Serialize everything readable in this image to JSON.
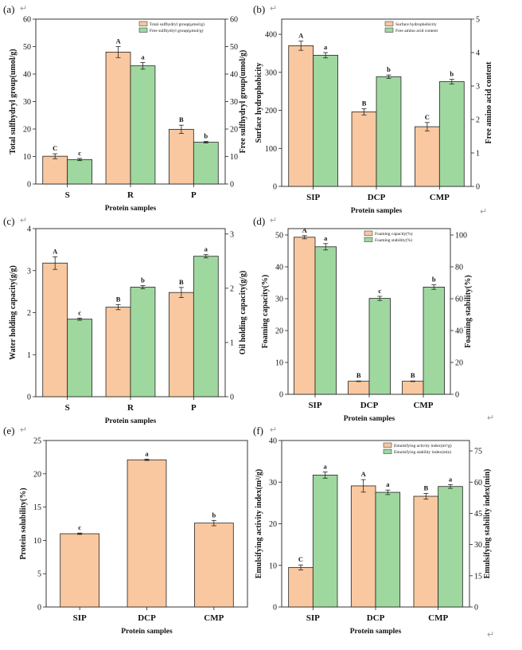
{
  "colors": {
    "primary": "#f9c8a0",
    "secondary": "#9fd89f",
    "edge": "#222222",
    "mark": "#9a9a9a"
  },
  "trailing_mark": "↵",
  "chart_data": [
    {
      "type": "bar",
      "panel": "(a)",
      "categories": [
        "S",
        "R",
        "P"
      ],
      "xlabel": "Protein samples",
      "ylabel": "Total sulfhydryl group(umol/g)",
      "ylabel2": "Free sulfhydryl group(umol/g)",
      "ylim": [
        0,
        60
      ],
      "yticks": [
        0,
        10,
        20,
        30,
        40,
        50,
        60
      ],
      "ylim2": [
        0,
        60
      ],
      "yticks2": [
        0,
        10,
        20,
        30,
        40,
        50,
        60
      ],
      "legend": "top-right",
      "series": [
        {
          "name": "Total sulfhydryl group(μmol/g)",
          "axis": "left",
          "values": [
            10.1,
            48.0,
            19.9
          ],
          "errors": [
            0.9,
            2.0,
            1.5
          ],
          "letters": [
            "C",
            "A",
            "B"
          ]
        },
        {
          "name": "Free sulfhydryl group(μmol/g)",
          "axis": "right",
          "values": [
            8.9,
            43.0,
            15.2
          ],
          "errors": [
            0.4,
            1.2,
            0.3
          ],
          "letters": [
            "c",
            "a",
            "b"
          ]
        }
      ]
    },
    {
      "type": "bar",
      "panel": "(b)",
      "categories": [
        "SIP",
        "DCP",
        "CMP"
      ],
      "xlabel": "Protein samples",
      "ylabel": "Surface hydrophobicity",
      "ylabel2": "Free amino acid content",
      "ylim": [
        0,
        440
      ],
      "yticks": [
        0,
        100,
        200,
        300,
        400
      ],
      "ylim2": [
        0,
        5
      ],
      "yticks2": [
        0,
        1,
        2,
        3,
        4,
        5
      ],
      "legend": "top-right",
      "series": [
        {
          "name": "Surface hydrophobicity",
          "axis": "left",
          "values": [
            370,
            196,
            157
          ],
          "errors": [
            12,
            8,
            11
          ],
          "letters": [
            "A",
            "B",
            "C"
          ]
        },
        {
          "name": "Free amino acid content",
          "axis": "right",
          "values": [
            3.92,
            3.28,
            3.13
          ],
          "errors": [
            0.08,
            0.05,
            0.07
          ],
          "letters": [
            "a",
            "b",
            "b"
          ]
        }
      ]
    },
    {
      "type": "bar",
      "panel": "(c)",
      "categories": [
        "S",
        "R",
        "P"
      ],
      "xlabel": "Protein samples",
      "ylabel": "Water holding capacity(g/g)",
      "ylabel2": "Oil holding capacity(g/g)",
      "ylim": [
        0,
        4
      ],
      "yticks": [
        0,
        1,
        2,
        3,
        4
      ],
      "ylim2": [
        0,
        3.1
      ],
      "yticks2": [
        0,
        1,
        2,
        3
      ],
      "legend": "none",
      "series": [
        {
          "name": "Water holding capacity(g/g)",
          "axis": "left",
          "values": [
            3.18,
            2.13,
            2.48
          ],
          "errors": [
            0.15,
            0.06,
            0.12
          ],
          "letters": [
            "A",
            "B",
            "B"
          ]
        },
        {
          "name": "Oil holding capacity(g/g)",
          "axis": "right",
          "values": [
            1.43,
            2.02,
            2.59
          ],
          "errors": [
            0.02,
            0.03,
            0.03
          ],
          "letters": [
            "c",
            "b",
            "a"
          ]
        }
      ]
    },
    {
      "type": "bar",
      "panel": "(d)",
      "categories": [
        "SIP",
        "DCP",
        "CMP"
      ],
      "xlabel": "Protein samples",
      "ylabel": "Foaming capacity(%)",
      "ylabel2": "Foaming stability(%)",
      "ylim": [
        0,
        52
      ],
      "yticks": [
        0,
        10,
        20,
        30,
        40,
        50
      ],
      "ylim2": [
        0,
        104
      ],
      "yticks2": [
        0,
        20,
        40,
        60,
        80,
        100
      ],
      "legend": "top-right",
      "series": [
        {
          "name": "Foaming capacity(%)",
          "axis": "left",
          "values": [
            49.3,
            4.1,
            4.1
          ],
          "errors": [
            0.5,
            0.1,
            0.1
          ],
          "letters": [
            "A",
            "B",
            "B"
          ]
        },
        {
          "name": "Foaming stability(%)",
          "axis": "right",
          "values": [
            92.6,
            60.2,
            67.3
          ],
          "errors": [
            2.0,
            1.3,
            1.4
          ],
          "letters": [
            "a",
            "c",
            "b"
          ]
        }
      ]
    },
    {
      "type": "bar",
      "panel": "(e)",
      "categories": [
        "SIP",
        "DCP",
        "CMP"
      ],
      "xlabel": "Protein samples",
      "ylabel": "Protein solubility(%)",
      "ylim": [
        0,
        25
      ],
      "yticks": [
        0,
        5,
        10,
        15,
        20,
        25
      ],
      "legend": "none",
      "series": [
        {
          "name": "Protein solubility(%)",
          "axis": "left",
          "values": [
            11.0,
            22.1,
            12.6
          ],
          "errors": [
            0.1,
            0.1,
            0.4
          ],
          "letters": [
            "c",
            "a",
            "b"
          ]
        }
      ]
    },
    {
      "type": "bar",
      "panel": "(f)",
      "categories": [
        "SIP",
        "DCP",
        "CMP"
      ],
      "xlabel": "Protein samples",
      "ylabel": "Emulsifying activity index(m²/g)",
      "ylabel2": "Emulsifying stability index(min)",
      "ylim": [
        0,
        40
      ],
      "yticks": [
        0,
        10,
        20,
        30,
        40
      ],
      "ylim2": [
        0,
        80
      ],
      "yticks2": [
        0,
        15,
        30,
        45,
        60,
        75
      ],
      "legend": "top-right",
      "series": [
        {
          "name": "Emulsifying activity index(m²/g)",
          "axis": "left",
          "values": [
            9.5,
            29.1,
            26.6
          ],
          "errors": [
            0.6,
            1.5,
            0.7
          ],
          "letters": [
            "C",
            "A",
            "B"
          ]
        },
        {
          "name": "Emulsifying stability index(min)",
          "axis": "right",
          "values": [
            63.4,
            55.1,
            57.9
          ],
          "errors": [
            1.5,
            1.1,
            0.9
          ],
          "letters": [
            "a",
            "a",
            "a"
          ]
        }
      ]
    }
  ]
}
